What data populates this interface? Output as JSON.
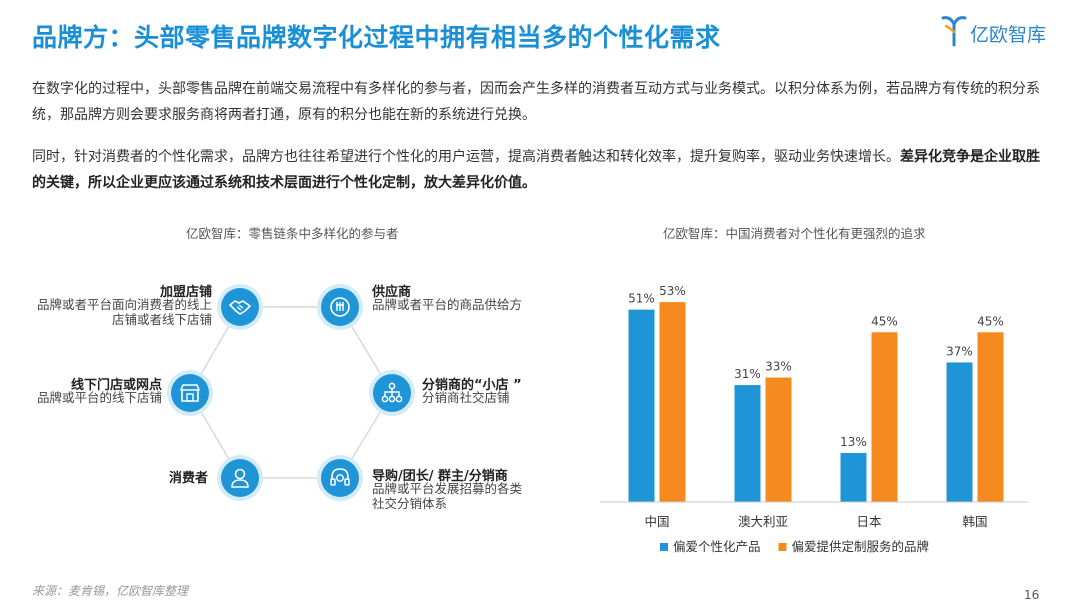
{
  "title": "品牌方：头部零售品牌数字化过程中拥有相当多的个性化需求",
  "logo": {
    "text": "亿欧智库"
  },
  "paragraph1": "在数字化的过程中，头部零售品牌在前端交易流程中有多样化的参与者，因而会产生多样的消费者互动方式与业务模式。以积分体系为例，若品牌方有传统的积分系统，那品牌方则会要求服务商将两者打通，原有的积分也能在新的系统进行兑换。",
  "paragraph2_normal": "同时，针对消费者的个性化需求，品牌方也往往希望进行个性化的用户运营，提高消费者触达和转化效率，提升复购率，驱动业务快速增长。",
  "paragraph2_bold": "差异化竞争是企业取胜的关键，所以企业更应该通过系统和技术层面进行个性化定制，放大差异化价值。",
  "diagram": {
    "title": "亿欧智库：零售链条中多样化的参与者",
    "nodes": [
      {
        "title": "加盟店铺",
        "desc": "品牌或者平台面向消费者的线上店铺或者线下店铺",
        "icon": "handshake-icon"
      },
      {
        "title": "供应商",
        "desc": "品牌或者平台的商品供给方",
        "icon": "supplier-icon"
      },
      {
        "title": "线下门店或网点",
        "desc": "品牌或平台的线下店铺",
        "icon": "store-icon"
      },
      {
        "title": "分销商的“小店 ”",
        "desc": "分销商社交店铺",
        "icon": "network-icon"
      },
      {
        "title": "消费者",
        "desc": "",
        "icon": "user-icon"
      },
      {
        "title": "导购/团长/ 群主/分销商",
        "desc": "品牌或平台发展招募的各类社交分销体系",
        "icon": "headset-icon"
      }
    ]
  },
  "chart_data": {
    "type": "bar",
    "title": "亿欧智库：中国消费者对个性化有更强烈的追求",
    "categories": [
      "中国",
      "澳大利亚",
      "日本",
      "韩国"
    ],
    "series": [
      {
        "name": "偏爱个性化产品",
        "values": [
          51,
          31,
          13,
          37
        ],
        "color": "#1f94d6"
      },
      {
        "name": "偏爱提供定制服务的品牌",
        "values": [
          53,
          33,
          45,
          45
        ],
        "color": "#f58a1f"
      }
    ],
    "value_suffix": "%",
    "ylim": [
      0,
      60
    ],
    "grid": false,
    "legend": "bottom"
  },
  "footer": {
    "source": "来源：麦肯锡，亿欧智库整理",
    "page": "16"
  }
}
